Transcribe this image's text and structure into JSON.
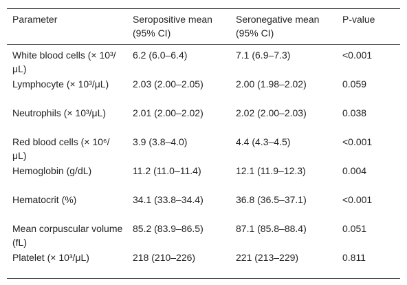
{
  "table": {
    "header": [
      "Parameter",
      "Seropositive mean (95% CI)",
      "Seronegative mean (95% CI)",
      "P-value"
    ],
    "rows": [
      [
        "White blood cells (× 10³/μL)",
        "6.2 (6.0–6.4)",
        "7.1 (6.9–7.3)",
        "<0.001"
      ],
      [
        "Lymphocyte (× 10³/μL)",
        "2.03 (2.00–2.05)",
        "2.00 (1.98–2.02)",
        "0.059"
      ],
      [
        "Neutrophils (× 10³/μL)",
        "2.01 (2.00–2.02)",
        "2.02 (2.00–2.03)",
        "0.038"
      ],
      [
        "Red blood cells (× 10⁶/μL)",
        "3.9 (3.8–4.0)",
        "4.4 (4.3–4.5)",
        "<0.001"
      ],
      [
        "Hemoglobin (g/dL)",
        "11.2 (11.0–11.4)",
        "12.1 (11.9–12.3)",
        "0.004"
      ],
      [
        "Hematocrit (%)",
        "34.1 (33.8–34.4)",
        "36.8 (36.5–37.1)",
        "<0.001"
      ],
      [
        "Mean corpuscular volume (fL)",
        "85.2 (83.9–86.5)",
        "87.1 (85.8–88.4)",
        "0.051"
      ],
      [
        "Platelet (× 10³/μL)",
        "218 (210–226)",
        "221 (213–229)",
        "0.811"
      ]
    ]
  }
}
